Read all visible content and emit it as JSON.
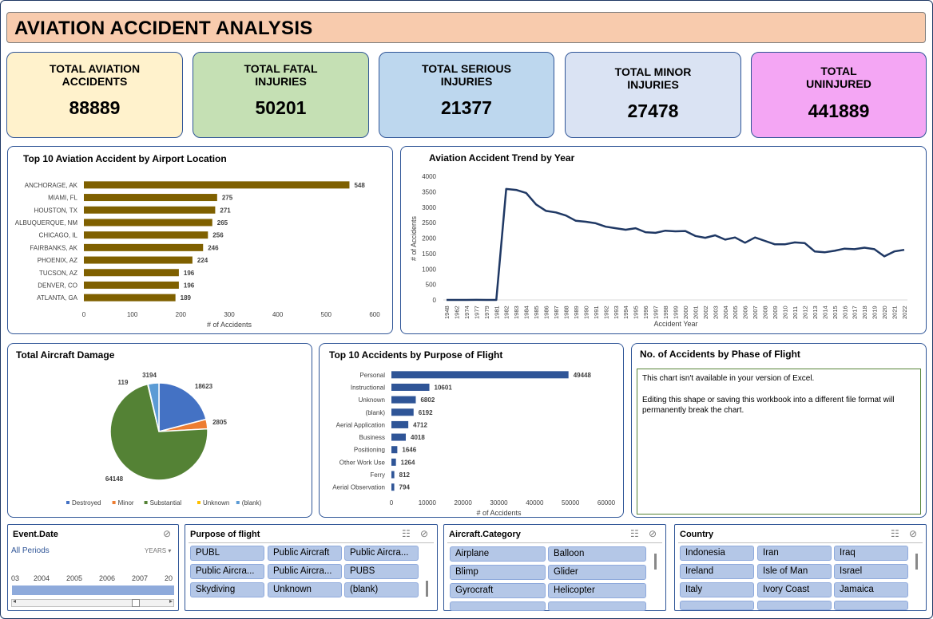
{
  "title": "AVIATION ACCIDENT ANALYSIS",
  "kpis": [
    {
      "label1": "TOTAL AVIATION",
      "label2": "ACCIDENTS",
      "value": "88889",
      "color": "#fff2cc"
    },
    {
      "label1": "TOTAL FATAL",
      "label2": "INJURIES",
      "value": "50201",
      "color": "#c5e0b4"
    },
    {
      "label1": "TOTAL SERIOUS",
      "label2": "INJURIES",
      "value": "21377",
      "color": "#bdd7ee"
    },
    {
      "label1": "TOTAL MINOR",
      "label2": "INJURIES",
      "value": "27478",
      "color": "#dae3f3"
    },
    {
      "label1": "TOTAL",
      "label2": "UNINJURED",
      "value": "441889",
      "color": "#f4a6f4"
    }
  ],
  "panels": {
    "location_title": "Top 10 Aviation Accident by Airport Location",
    "trend_title": "Aviation Accident Trend by Year",
    "damage_title": "Total Aircraft Damage",
    "purpose_title": "Top 10 Accidents by Purpose of Flight",
    "phase_title": "No. of Accidents by Phase of Flight",
    "phase_msg1": "This chart isn't available in your version of Excel.",
    "phase_msg2": "Editing this shape or saving this workbook into a different file format will permanently break the chart."
  },
  "chart_data": [
    {
      "type": "bar",
      "orientation": "horizontal",
      "title": "Top 10 Aviation Accident by Airport Location",
      "categories": [
        "ANCHORAGE, AK",
        "MIAMI, FL",
        "HOUSTON, TX",
        "ALBUQUERQUE, NM",
        "CHICAGO, IL",
        "FAIRBANKS, AK",
        "PHOENIX, AZ",
        "TUCSON, AZ",
        "DENVER, CO",
        "ATLANTA, GA"
      ],
      "values": [
        548,
        275,
        271,
        265,
        256,
        246,
        224,
        196,
        196,
        189
      ],
      "xlabel": "# of Accidents",
      "xlim": [
        0,
        600
      ],
      "xticks": [
        0,
        100,
        200,
        300,
        400,
        500,
        600
      ],
      "color": "#7f6000"
    },
    {
      "type": "line",
      "title": "Aviation Accident Trend by Year",
      "x": [
        "1948",
        "1962",
        "1974",
        "1977",
        "1979",
        "1981",
        "1982",
        "1983",
        "1984",
        "1985",
        "1986",
        "1987",
        "1988",
        "1989",
        "1990",
        "1991",
        "1992",
        "1993",
        "1994",
        "1995",
        "1996",
        "1997",
        "1998",
        "1999",
        "2000",
        "2001",
        "2002",
        "2003",
        "2004",
        "2005",
        "2006",
        "2007",
        "2008",
        "2009",
        "2010",
        "2011",
        "2012",
        "2013",
        "2014",
        "2015",
        "2016",
        "2017",
        "2018",
        "2019",
        "2020",
        "2021",
        "2022"
      ],
      "values": [
        1,
        1,
        1,
        2,
        1,
        1,
        3590,
        3560,
        3460,
        3090,
        2880,
        2830,
        2730,
        2560,
        2530,
        2480,
        2370,
        2320,
        2270,
        2320,
        2190,
        2170,
        2240,
        2220,
        2230,
        2070,
        2010,
        2090,
        1950,
        2020,
        1850,
        2020,
        1910,
        1800,
        1800,
        1860,
        1840,
        1570,
        1540,
        1590,
        1660,
        1640,
        1690,
        1640,
        1410,
        1570,
        1620
      ],
      "xlabel": "Accident Year",
      "ylabel": "# of Accidents",
      "ylim": [
        0,
        4000
      ],
      "yticks": [
        0,
        500,
        1000,
        1500,
        2000,
        2500,
        3000,
        3500,
        4000
      ],
      "color": "#1f3864"
    },
    {
      "type": "pie",
      "title": "Total Aircraft Damage",
      "categories": [
        "Destroyed",
        "Minor",
        "Substantial",
        "Unknown",
        "(blank)"
      ],
      "values": [
        18623,
        2805,
        64148,
        119,
        3194
      ],
      "colors": [
        "#4472c4",
        "#ed7d31",
        "#548235",
        "#ffc000",
        "#5b9bd5"
      ]
    },
    {
      "type": "bar",
      "orientation": "horizontal",
      "title": "Top 10 Accidents by Purpose of Flight",
      "categories": [
        "Personal",
        "Instructional",
        "Unknown",
        "(blank)",
        "Aerial Application",
        "Business",
        "Positioning",
        "Other Work Use",
        "Ferry",
        "Aerial Observation"
      ],
      "values": [
        49448,
        10601,
        6802,
        6192,
        4712,
        4018,
        1646,
        1264,
        812,
        794
      ],
      "xlabel": "# of Accidents",
      "xlim": [
        0,
        60000
      ],
      "xticks": [
        0,
        10000,
        20000,
        30000,
        40000,
        50000,
        60000
      ],
      "color": "#2f5597"
    }
  ],
  "slicers": {
    "event_date": {
      "title": "Event.Date",
      "periods": "All Periods",
      "unit": "YEARS",
      "years": [
        "03",
        "2004",
        "2005",
        "2006",
        "2007",
        "20"
      ]
    },
    "purpose": {
      "title": "Purpose of flight",
      "items": [
        "PUBL",
        "Public Aircraft",
        "Public Aircra...",
        "Public Aircra...",
        "Public Aircra...",
        "PUBS",
        "Skydiving",
        "Unknown",
        "(blank)"
      ]
    },
    "category": {
      "title": "Aircraft.Category",
      "items": [
        "Airplane",
        "Balloon",
        "Blimp",
        "Glider",
        "Gyrocraft",
        "Helicopter"
      ]
    },
    "country": {
      "title": "Country",
      "items": [
        "Indonesia",
        "Iran",
        "Iraq",
        "Ireland",
        "Isle of Man",
        "Israel",
        "Italy",
        "Ivory Coast",
        "Jamaica"
      ]
    }
  }
}
